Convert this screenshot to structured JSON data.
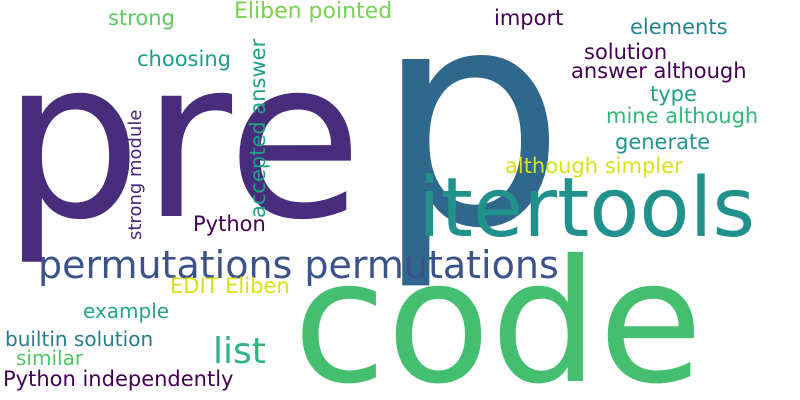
{
  "words": [
    {
      "text": "p",
      "color": "#30678d"
    },
    {
      "text": "pre",
      "color": "#472d7b"
    },
    {
      "text": "code",
      "color": "#44bf70"
    },
    {
      "text": "itertools",
      "color": "#21918c"
    },
    {
      "text": "permutations permutations",
      "color": "#3b528b"
    },
    {
      "text": "list",
      "color": "#2fb47c"
    },
    {
      "text": "Eliben pointed",
      "color": "#7ad151"
    },
    {
      "text": "strong",
      "color": "#5ec962"
    },
    {
      "text": "import",
      "color": "#440154"
    },
    {
      "text": "elements",
      "color": "#25858e"
    },
    {
      "text": "solution",
      "color": "#440154"
    },
    {
      "text": "answer although",
      "color": "#440154"
    },
    {
      "text": "choosing",
      "color": "#1f9e89"
    },
    {
      "text": "accepted answer",
      "color": "#1fa187"
    },
    {
      "text": "strong module",
      "color": "#482677"
    },
    {
      "text": "type",
      "color": "#20a386"
    },
    {
      "text": "mine although",
      "color": "#35b779"
    },
    {
      "text": "generate",
      "color": "#1f968b"
    },
    {
      "text": "although simpler",
      "color": "#d8e219"
    },
    {
      "text": "Python",
      "color": "#440154"
    },
    {
      "text": "EDIT Eliben",
      "color": "#d8e219"
    },
    {
      "text": "example",
      "color": "#22a884"
    },
    {
      "text": "builtin solution",
      "color": "#287c8e"
    },
    {
      "text": "similar",
      "color": "#52c569"
    },
    {
      "text": "Python independently",
      "color": "#440154"
    }
  ]
}
